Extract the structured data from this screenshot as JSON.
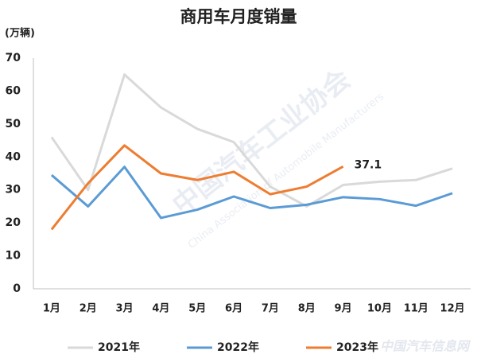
{
  "chart_data": {
    "type": "line",
    "title": "商用车月度销量",
    "y_label": "(万辆)",
    "categories": [
      "1月",
      "2月",
      "3月",
      "4月",
      "5月",
      "6月",
      "7月",
      "8月",
      "9月",
      "10月",
      "11月",
      "12月"
    ],
    "series": [
      {
        "name": "2021年",
        "color": "#d9d9d9",
        "values": [
          46,
          30,
          65,
          55,
          48.5,
          44.5,
          31,
          25,
          31.5,
          32.5,
          33,
          36.5
        ]
      },
      {
        "name": "2022年",
        "color": "#5b9bd5",
        "values": [
          34.5,
          25,
          37,
          21.5,
          24,
          28,
          24.5,
          25.5,
          27.8,
          27.2,
          25.2,
          29
        ]
      },
      {
        "name": "2023年",
        "color": "#ed7d31",
        "values": [
          18,
          32,
          43.5,
          35,
          33,
          35.5,
          28.7,
          31,
          37.1,
          null,
          null,
          null
        ]
      }
    ],
    "ylim": [
      0,
      70
    ],
    "yticks": [
      0,
      10,
      20,
      30,
      40,
      50,
      60,
      70
    ],
    "grid": false,
    "legend": "bottom",
    "watermarks": [
      "中国汽车工业协会",
      "China Association of Automobile Manufacturers",
      "中国汽车信息网"
    ]
  }
}
